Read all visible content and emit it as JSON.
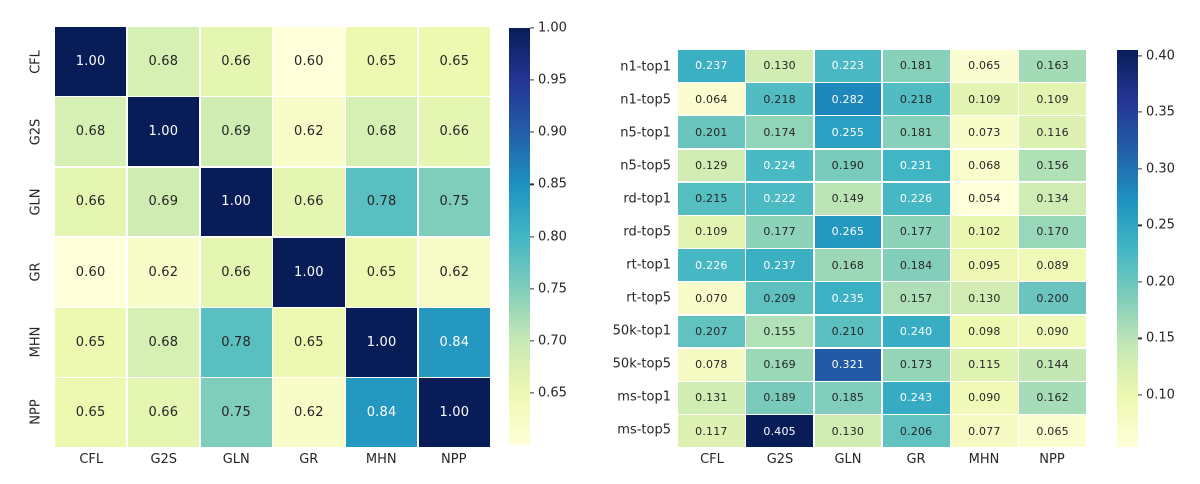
{
  "figure": {
    "background": "#ffffff",
    "colormap_name": "YlGnBu",
    "colormap_stops": [
      "#ffffd9",
      "#edf8b1",
      "#c7e9b4",
      "#7fcdbb",
      "#41b6c4",
      "#1d91c0",
      "#225ea8",
      "#253494",
      "#081d58"
    ],
    "annotation_dark_color": "#262626",
    "annotation_light_color": "#ffffff",
    "tick_label_color": "#262626"
  },
  "chart_data": [
    {
      "type": "heatmap",
      "name": "model-correlation-heatmap",
      "columns": [
        "CFL",
        "G2S",
        "GLN",
        "GR",
        "MHN",
        "NPP"
      ],
      "rows": [
        "CFL",
        "G2S",
        "GLN",
        "GR",
        "MHN",
        "NPP"
      ],
      "values": [
        [
          1.0,
          0.68,
          0.66,
          0.6,
          0.65,
          0.65
        ],
        [
          0.68,
          1.0,
          0.69,
          0.62,
          0.68,
          0.66
        ],
        [
          0.66,
          0.69,
          1.0,
          0.66,
          0.78,
          0.75
        ],
        [
          0.6,
          0.62,
          0.66,
          1.0,
          0.65,
          0.62
        ],
        [
          0.65,
          0.68,
          0.78,
          0.65,
          1.0,
          0.84
        ],
        [
          0.65,
          0.66,
          0.75,
          0.62,
          0.84,
          1.0
        ]
      ],
      "decimals": 2,
      "vmin": 0.6,
      "vmax": 1.0,
      "colorbar_ticks": [
        1.0,
        0.95,
        0.9,
        0.85,
        0.8,
        0.75,
        0.7,
        0.65
      ],
      "colorbar_tick_decimals": 2,
      "grid_on": false,
      "legend_position": "right-colorbar"
    },
    {
      "type": "heatmap",
      "name": "metric-agreement-heatmap",
      "columns": [
        "CFL",
        "G2S",
        "GLN",
        "GR",
        "MHN",
        "NPP"
      ],
      "rows": [
        "n1-top1",
        "n1-top5",
        "n5-top1",
        "n5-top5",
        "rd-top1",
        "rd-top5",
        "rt-top1",
        "rt-top5",
        "50k-top1",
        "50k-top5",
        "ms-top1",
        "ms-top5"
      ],
      "values": [
        [
          0.237,
          0.13,
          0.223,
          0.181,
          0.065,
          0.163
        ],
        [
          0.064,
          0.218,
          0.282,
          0.218,
          0.109,
          0.109
        ],
        [
          0.201,
          0.174,
          0.255,
          0.181,
          0.073,
          0.116
        ],
        [
          0.129,
          0.224,
          0.19,
          0.231,
          0.068,
          0.156
        ],
        [
          0.215,
          0.222,
          0.149,
          0.226,
          0.054,
          0.134
        ],
        [
          0.109,
          0.177,
          0.265,
          0.177,
          0.102,
          0.17
        ],
        [
          0.226,
          0.237,
          0.168,
          0.184,
          0.095,
          0.089
        ],
        [
          0.07,
          0.209,
          0.235,
          0.157,
          0.13,
          0.2
        ],
        [
          0.207,
          0.155,
          0.21,
          0.24,
          0.098,
          0.09
        ],
        [
          0.078,
          0.169,
          0.321,
          0.173,
          0.115,
          0.144
        ],
        [
          0.131,
          0.189,
          0.185,
          0.243,
          0.09,
          0.162
        ],
        [
          0.117,
          0.405,
          0.13,
          0.206,
          0.077,
          0.065
        ]
      ],
      "decimals": 3,
      "vmin": 0.054,
      "vmax": 0.405,
      "colorbar_ticks": [
        0.4,
        0.35,
        0.3,
        0.25,
        0.2,
        0.15,
        0.1
      ],
      "colorbar_tick_decimals": 2,
      "grid_on": false,
      "legend_position": "right-colorbar"
    }
  ]
}
